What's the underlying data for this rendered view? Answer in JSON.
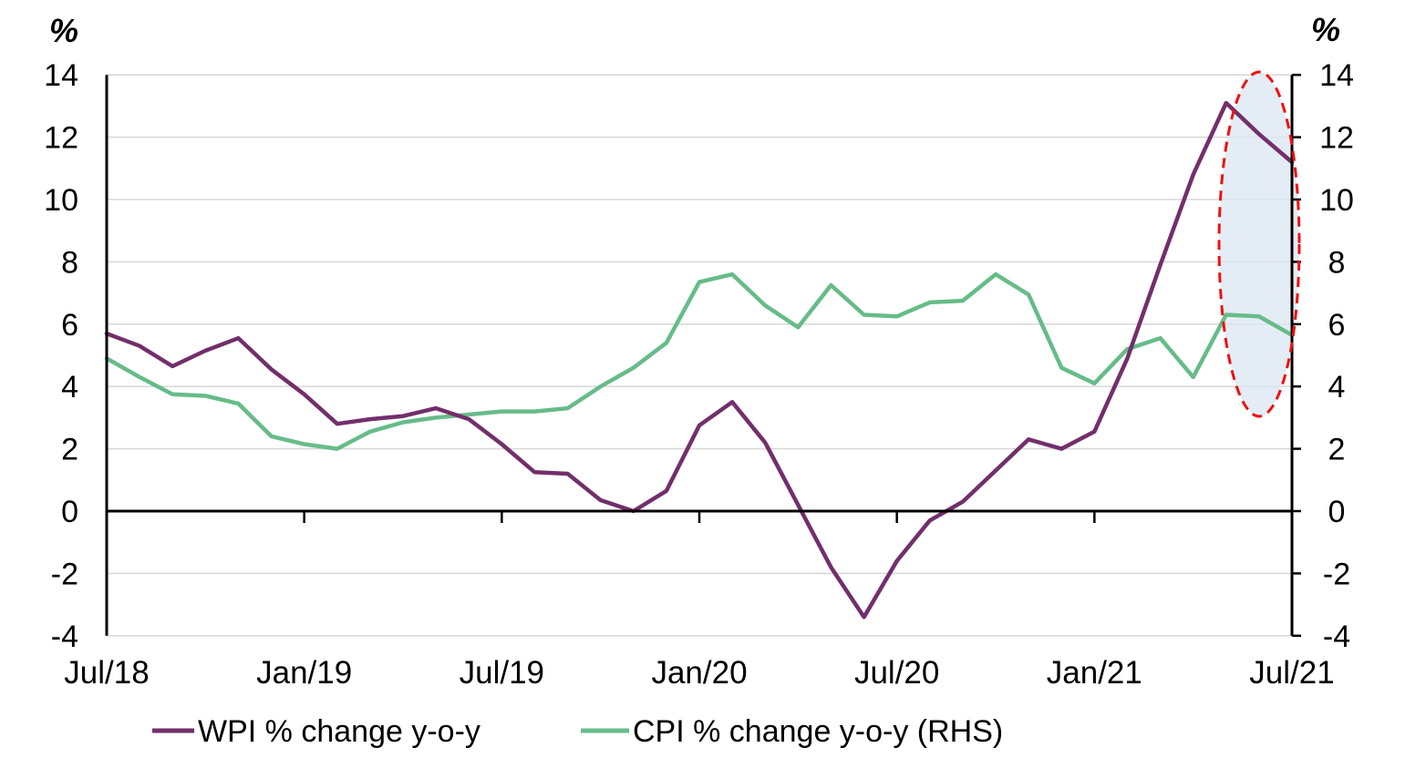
{
  "chart_data": {
    "type": "line",
    "title": "",
    "x": [
      "Jul/18",
      "Aug/18",
      "Sep/18",
      "Oct/18",
      "Nov/18",
      "Dec/18",
      "Jan/19",
      "Feb/19",
      "Mar/19",
      "Apr/19",
      "May/19",
      "Jun/19",
      "Jul/19",
      "Aug/19",
      "Sep/19",
      "Oct/19",
      "Nov/19",
      "Dec/19",
      "Jan/20",
      "Feb/20",
      "Mar/20",
      "Apr/20",
      "May/20",
      "Jun/20",
      "Jul/20",
      "Aug/20",
      "Sep/20",
      "Oct/20",
      "Nov/20",
      "Dec/20",
      "Jan/21",
      "Feb/21",
      "Mar/21",
      "Apr/21",
      "May/21",
      "Jun/21",
      "Jul/21"
    ],
    "series": [
      {
        "name": "WPI % change y-o-y",
        "axis": "left",
        "color": "#722f6b",
        "values": [
          5.7,
          5.3,
          4.65,
          5.15,
          5.55,
          4.55,
          3.75,
          2.8,
          2.95,
          3.05,
          3.3,
          2.95,
          2.15,
          1.25,
          1.2,
          0.35,
          0.0,
          0.65,
          2.75,
          3.5,
          2.2,
          0.2,
          -1.8,
          -3.4,
          -1.6,
          -0.3,
          0.3,
          1.3,
          2.3,
          2.0,
          2.55,
          4.9,
          7.9,
          10.8,
          13.1,
          12.1,
          11.2
        ]
      },
      {
        "name": "CPI % change y-o-y (RHS)",
        "axis": "right",
        "color": "#66bc89",
        "values": [
          4.9,
          4.3,
          3.75,
          3.7,
          3.45,
          2.4,
          2.15,
          2.0,
          2.55,
          2.85,
          3.0,
          3.1,
          3.2,
          3.2,
          3.3,
          4.0,
          4.6,
          5.4,
          7.35,
          7.6,
          6.6,
          5.9,
          7.25,
          6.3,
          6.25,
          6.7,
          6.75,
          7.6,
          6.95,
          4.6,
          4.1,
          5.2,
          5.55,
          4.3,
          6.3,
          6.25,
          5.65
        ]
      }
    ],
    "ylim": [
      -4,
      14
    ],
    "y_ticks": [
      14,
      12,
      10,
      8,
      6,
      4,
      2,
      0,
      -2,
      -4
    ],
    "x_tick_labels": [
      "Jul/18",
      "Jan/19",
      "Jul/19",
      "Jan/20",
      "Jul/20",
      "Jan/21",
      "Jul/21"
    ],
    "x_tick_month_index": [
      0,
      6,
      12,
      18,
      24,
      30,
      36
    ],
    "axis_unit_left": "%",
    "axis_unit_right": "%",
    "grid": "horizontal",
    "gridline_color": "#d9d9d9",
    "legend_position": "bottom-left",
    "annotation": {
      "type": "dashed-ellipse-highlight",
      "highlighted_months": "Jun/21 - Jul/21",
      "border_color": "#ee1111",
      "fill_color": "#dbe7f2"
    }
  }
}
